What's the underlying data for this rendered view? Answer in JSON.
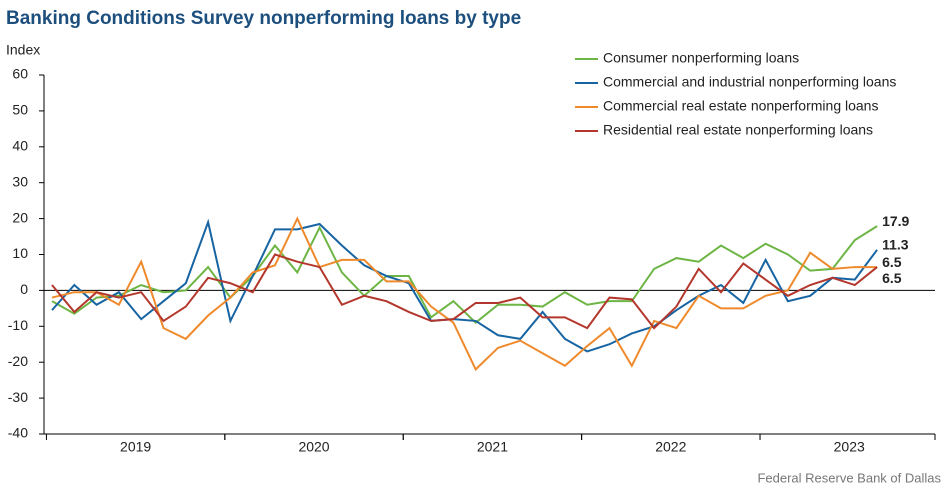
{
  "chart_data": {
    "type": "line",
    "title": "Banking Conditions Survey nonperforming loans by type",
    "y_label": "Index",
    "source": "Federal Reserve Bank of Dallas",
    "categories": [
      null,
      null,
      null,
      null,
      "2019",
      null,
      null,
      null,
      null,
      null,
      null,
      null,
      "2020",
      null,
      null,
      null,
      null,
      null,
      null,
      null,
      "2021",
      null,
      null,
      null,
      null,
      null,
      null,
      null,
      "2022",
      null,
      null,
      null,
      null,
      null,
      null,
      null,
      "2023",
      null
    ],
    "ylim": [
      -40,
      60
    ],
    "yticks": [
      -40,
      -30,
      -20,
      -10,
      0,
      10,
      20,
      30,
      40,
      50,
      60
    ],
    "series": [
      {
        "name": "Consumer nonperforming loans",
        "color": "#6db544",
        "values": [
          -3,
          -6.5,
          -2,
          -1.5,
          1.5,
          -0.5,
          0,
          6.5,
          -2,
          4,
          12.5,
          5,
          17.5,
          5,
          -1.5,
          4,
          4,
          -7.5,
          -3,
          -9,
          -4,
          -4,
          -4.5,
          -0.5,
          -4,
          -3,
          -3,
          6,
          9,
          8,
          12.5,
          9,
          13,
          10,
          5.5,
          6,
          14,
          17.9
        ]
      },
      {
        "name": "Commercial and industrial nonperforming loans",
        "color": "#1764a3",
        "values": [
          -5.5,
          1.5,
          -4,
          -0.5,
          -8,
          -3,
          2,
          19,
          -8.5,
          4,
          17,
          17,
          18.5,
          12.5,
          7,
          4,
          2,
          -8.5,
          -8,
          -8.5,
          -12.5,
          -13.5,
          -6,
          -13.5,
          -17,
          -15,
          -12,
          -10,
          -5.5,
          -1.5,
          1.5,
          -3.5,
          8.5,
          -3,
          -1.5,
          3.5,
          3,
          11.3
        ]
      },
      {
        "name": "Commercial real estate nonperforming loans",
        "color": "#ef8a2c",
        "values": [
          -2,
          -0.5,
          -0.5,
          -4,
          8,
          -10.5,
          -13.5,
          -7,
          -2,
          5,
          7,
          20,
          6.5,
          8.5,
          8.5,
          2.5,
          2.5,
          -4.5,
          -9,
          -22,
          -16,
          -14,
          -17.5,
          -21,
          -15.5,
          -10.5,
          -21,
          -8.5,
          -10.5,
          -1.5,
          -5,
          -5,
          -1.5,
          0,
          10.5,
          6,
          6.5,
          6.5
        ]
      },
      {
        "name": "Residential real estate nonperforming loans",
        "color": "#b3372c",
        "values": [
          1.5,
          -6,
          -0.5,
          -2,
          -0.5,
          -8.5,
          -4.5,
          3.5,
          2,
          -0.5,
          10,
          8,
          6.5,
          -4,
          -1.5,
          -3,
          -6,
          -8.5,
          -8,
          -3.5,
          -3.5,
          -2,
          -7.5,
          -7.5,
          -10.5,
          -2,
          -2.5,
          -10.5,
          -4.5,
          6,
          -0.5,
          7.5,
          3,
          -1.5,
          1.5,
          3.5,
          1.5,
          6.5
        ]
      }
    ]
  }
}
